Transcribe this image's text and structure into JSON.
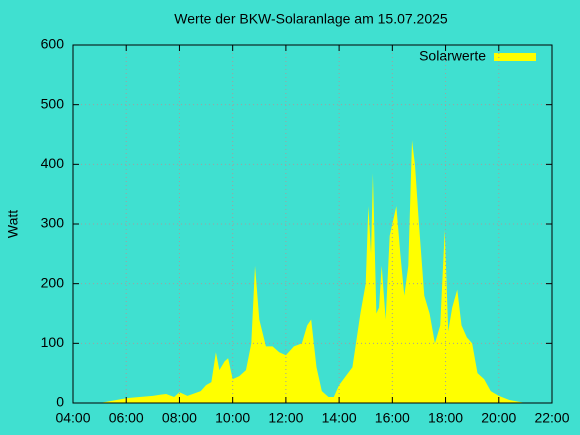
{
  "chart_data": {
    "type": "area",
    "title": "Werte der BKW-Solaranlage am 15.07.2025",
    "ylabel": "Watt",
    "x": [
      5.0,
      5.5,
      6.0,
      6.5,
      7.0,
      7.3,
      7.5,
      7.8,
      8.0,
      8.3,
      8.5,
      8.8,
      9.0,
      9.2,
      9.37,
      9.5,
      9.7,
      9.83,
      10.0,
      10.25,
      10.5,
      10.7,
      10.84,
      11.0,
      11.25,
      11.5,
      11.75,
      12.0,
      12.3,
      12.6,
      12.8,
      12.95,
      13.15,
      13.35,
      13.6,
      13.8,
      14.0,
      14.25,
      14.5,
      14.8,
      15.0,
      15.1,
      15.2,
      15.27,
      15.4,
      15.5,
      15.6,
      15.75,
      15.9,
      16.0,
      16.15,
      16.3,
      16.45,
      16.6,
      16.74,
      16.85,
      17.0,
      17.2,
      17.4,
      17.6,
      17.8,
      17.97,
      18.1,
      18.25,
      18.44,
      18.6,
      18.8,
      19.0,
      19.2,
      19.45,
      19.7,
      20.0,
      20.4,
      21.0
    ],
    "series": [
      {
        "name": "Solarwerte",
        "color": "#ffff00",
        "values": [
          0,
          4,
          8,
          10,
          12,
          14,
          15,
          10,
          18,
          12,
          15,
          20,
          30,
          35,
          85,
          55,
          70,
          75,
          40,
          45,
          55,
          100,
          230,
          140,
          95,
          95,
          85,
          80,
          95,
          100,
          130,
          140,
          60,
          20,
          10,
          10,
          30,
          45,
          60,
          150,
          200,
          330,
          250,
          385,
          150,
          160,
          230,
          140,
          280,
          300,
          330,
          250,
          180,
          230,
          440,
          400,
          300,
          180,
          150,
          100,
          130,
          290,
          120,
          160,
          190,
          130,
          110,
          100,
          50,
          40,
          20,
          12,
          5,
          0
        ]
      }
    ],
    "xlim": [
      4,
      22
    ],
    "xticks": [
      {
        "value": 4,
        "label": "04:00"
      },
      {
        "value": 6,
        "label": "06:00"
      },
      {
        "value": 8,
        "label": "08:00"
      },
      {
        "value": 10,
        "label": "10:00"
      },
      {
        "value": 12,
        "label": "12:00"
      },
      {
        "value": 14,
        "label": "14:00"
      },
      {
        "value": 16,
        "label": "16:00"
      },
      {
        "value": 18,
        "label": "18:00"
      },
      {
        "value": 20,
        "label": "20:00"
      },
      {
        "value": 22,
        "label": "22:00"
      }
    ],
    "ylim": [
      0,
      600
    ],
    "yticks": [
      0,
      100,
      200,
      300,
      400,
      500,
      600
    ],
    "grid": true,
    "legend": "top-right"
  }
}
